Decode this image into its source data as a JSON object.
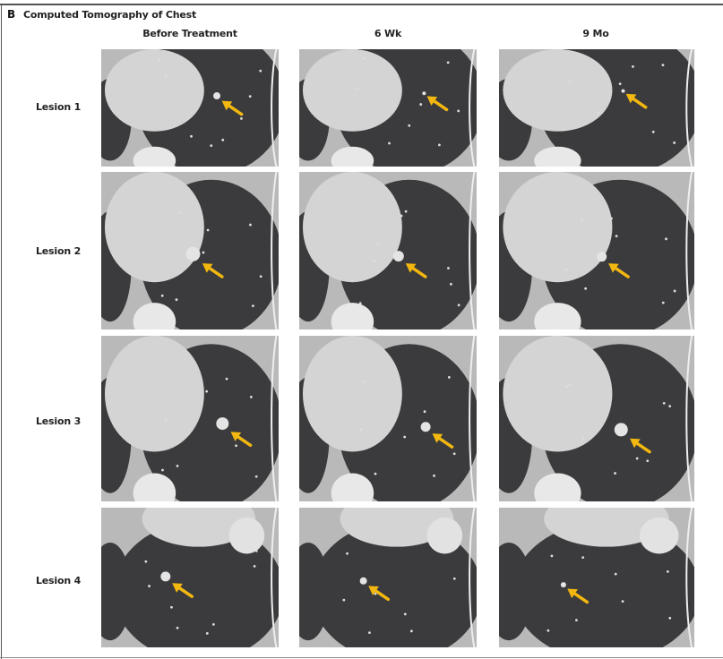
{
  "panel": {
    "letter": "B",
    "title": "Computed Tomography of Chest"
  },
  "columns": [
    "Before Treatment",
    "6 Wk",
    "9 Mo"
  ],
  "rows": [
    "Lesion 1",
    "Lesion 2",
    "Lesion 3",
    "Lesion 4"
  ],
  "colors": {
    "arrow": "#f3b80f",
    "lung": "#3b3b3d",
    "tissue": "#b9b9b9",
    "soft": "#d4d4d4"
  },
  "icons": {
    "lesion_marker": "arrow-icon"
  }
}
